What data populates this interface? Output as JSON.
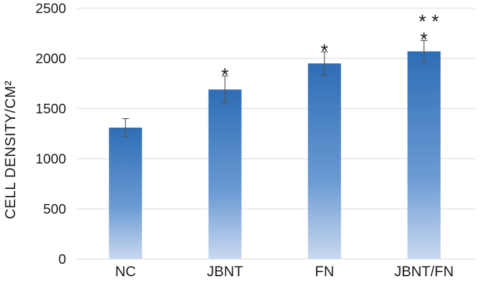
{
  "chart_data": {
    "type": "bar",
    "categories": [
      "NC",
      "JBNT",
      "FN",
      "JBNT/FN"
    ],
    "values": [
      1310,
      1690,
      1950,
      2070
    ],
    "errors": [
      90,
      135,
      115,
      110
    ],
    "significance": [
      "",
      "*",
      "*",
      "* *\n*"
    ],
    "ylabel": "CELL DENSITY/CM²",
    "xlabel": "",
    "title": "",
    "ylim": [
      0,
      2500
    ],
    "yticks": [
      0,
      500,
      1000,
      1500,
      2000,
      2500
    ],
    "grid": true,
    "colors": {
      "bar_top": "#2e6db5",
      "bar_bottom": "#c9d8ef",
      "error_bar": "#555555"
    }
  }
}
